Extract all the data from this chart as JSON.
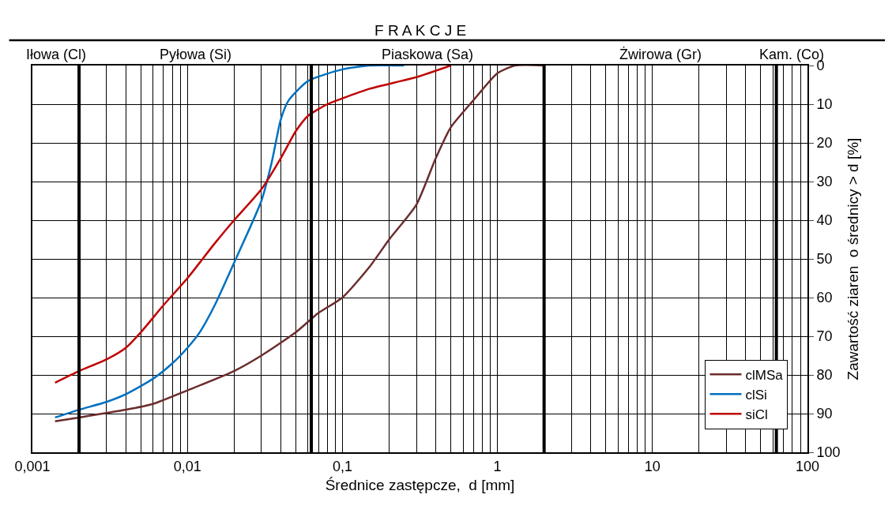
{
  "chart_data": {
    "type": "line",
    "title": "F R A K C J E",
    "xlabel": "Średnice zastępcze,  d [mm]",
    "ylabel": "Zawartość ziaren  o średnicy > d [%]",
    "log": "x",
    "xlim": [
      0.001,
      100
    ],
    "xticks": [
      {
        "value": 0.001,
        "label": "0,001"
      },
      {
        "value": 0.01,
        "label": "0,01"
      },
      {
        "value": 0.1,
        "label": "0,1"
      },
      1,
      10,
      100
    ],
    "ylim": [
      100,
      0
    ],
    "yticks": [
      0,
      10,
      20,
      30,
      40,
      50,
      60,
      70,
      80,
      90,
      100
    ],
    "grid": true,
    "legend": "bottom right",
    "line_style": "solid",
    "marker": "none",
    "ref_lines": [
      {
        "axis": "x",
        "value": 0.002,
        "color": "#000000"
      },
      {
        "axis": "x",
        "value": 0.063,
        "color": "#000000"
      },
      {
        "axis": "x",
        "value": 2,
        "color": "#000000"
      },
      {
        "axis": "x",
        "value": 63,
        "color": "#000000"
      }
    ],
    "annotations": [
      "Iłowa (Cl)",
      "Pyłowa (Si)",
      "Piaskowa (Sa)",
      "Żwirowa (Gr)",
      "Kam. (Co)"
    ],
    "series": [
      {
        "name": "clMSa",
        "color": "#6b2c2c",
        "x": [
          0.0014,
          0.002,
          0.004,
          0.006,
          0.01,
          0.02,
          0.03,
          0.05,
          0.07,
          0.1,
          0.15,
          0.2,
          0.3,
          0.4,
          0.5,
          0.7,
          1,
          1.3,
          2
        ],
        "values": [
          92,
          91,
          89,
          87.5,
          84,
          79,
          75,
          69,
          64,
          60,
          52,
          45,
          36,
          24,
          16,
          9,
          2,
          0,
          0
        ]
      },
      {
        "name": "clSi",
        "color": "#0070c0",
        "x": [
          0.0014,
          0.002,
          0.003,
          0.004,
          0.006,
          0.008,
          0.01,
          0.012,
          0.015,
          0.02,
          0.03,
          0.035,
          0.04,
          0.045,
          0.06,
          0.1,
          0.15,
          0.25
        ],
        "values": [
          91,
          89,
          87,
          85,
          81,
          77,
          73,
          69,
          62,
          51,
          35,
          25,
          14,
          9,
          4,
          1,
          0,
          0
        ]
      },
      {
        "name": "siCl",
        "color": "#c00000",
        "x": [
          0.0014,
          0.002,
          0.003,
          0.004,
          0.005,
          0.007,
          0.01,
          0.015,
          0.02,
          0.03,
          0.04,
          0.05,
          0.06,
          0.08,
          0.1,
          0.15,
          0.3,
          0.5
        ],
        "values": [
          82,
          79,
          76,
          73,
          69,
          62,
          55,
          46,
          40,
          32,
          24,
          17,
          13,
          10,
          8.5,
          6,
          3,
          0
        ]
      }
    ]
  }
}
